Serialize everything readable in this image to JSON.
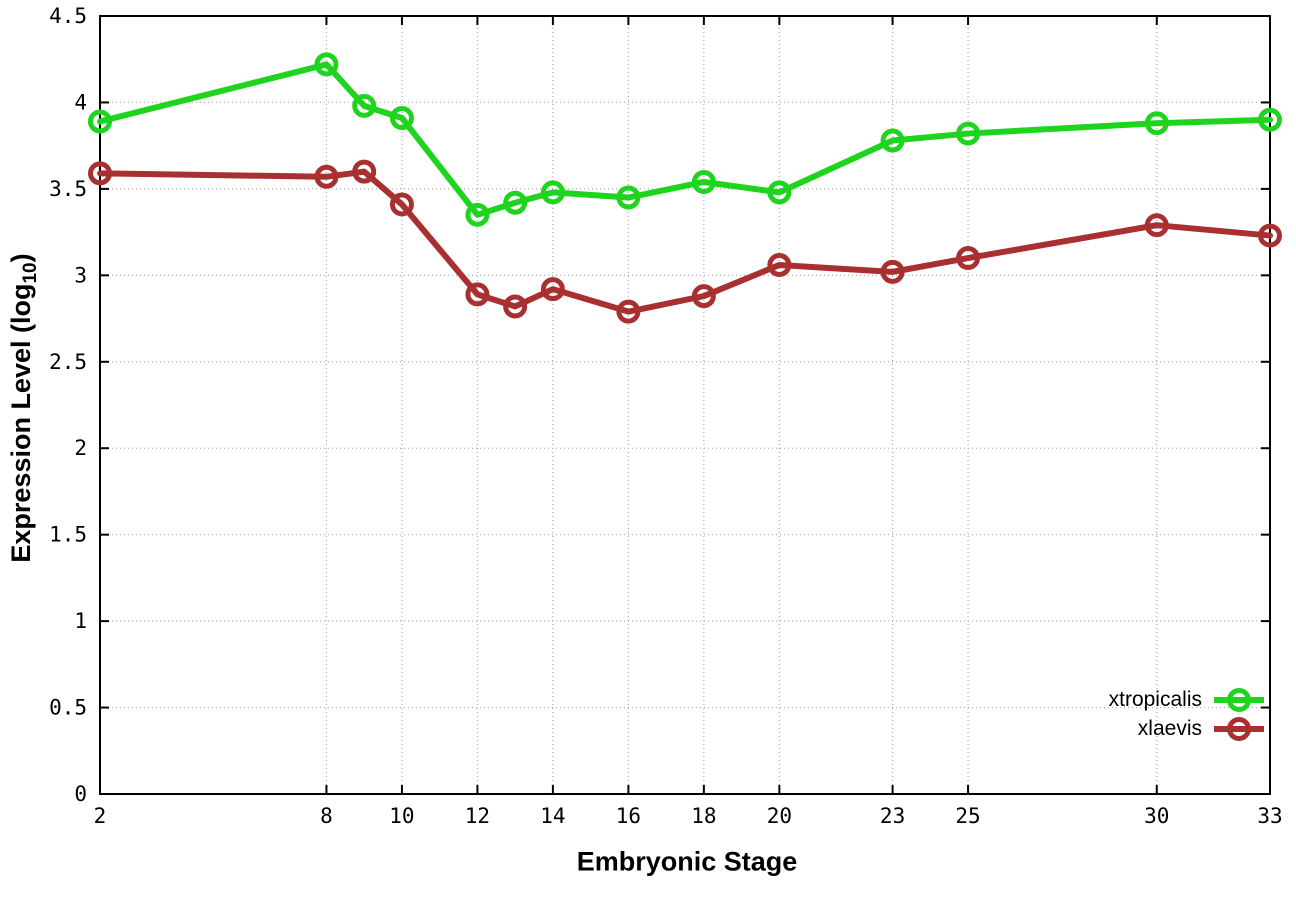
{
  "chart_data": {
    "type": "line",
    "title": "",
    "xlabel": "Embryonic Stage",
    "ylabel": {
      "prefix": "Expression Level (log",
      "sub": "10",
      "suffix": ")"
    },
    "xlim": [
      2,
      33
    ],
    "ylim": [
      0,
      4.5
    ],
    "x_ticks": [
      2,
      8,
      10,
      12,
      14,
      16,
      18,
      20,
      23,
      25,
      30,
      33
    ],
    "y_ticks": [
      0,
      0.5,
      1,
      1.5,
      2,
      2.5,
      3,
      3.5,
      4,
      4.5
    ],
    "y_tick_labels": [
      "0",
      "0.5",
      "1",
      "1.5",
      "2",
      "2.5",
      "3",
      "3.5",
      "4",
      "4.5"
    ],
    "grid": true,
    "legend_position": "bottom-right",
    "marker": "open-circle",
    "x": [
      2,
      8,
      9,
      10,
      12,
      13,
      14,
      16,
      18,
      20,
      23,
      25,
      30,
      33
    ],
    "series": [
      {
        "name": "xtropicalis",
        "color": "#1ed41e",
        "values": [
          3.89,
          4.22,
          3.98,
          3.91,
          3.35,
          3.42,
          3.48,
          3.45,
          3.54,
          3.48,
          3.78,
          3.82,
          3.88,
          3.9
        ]
      },
      {
        "name": "xlaevis",
        "color": "#a93030",
        "values": [
          3.59,
          3.57,
          3.6,
          3.41,
          2.89,
          2.82,
          2.92,
          2.79,
          2.88,
          3.06,
          3.02,
          3.1,
          3.29,
          3.23
        ]
      }
    ],
    "colors": {
      "border": "#000000",
      "grid": "#adadad",
      "text": "#000000",
      "background": "#ffffff"
    }
  }
}
